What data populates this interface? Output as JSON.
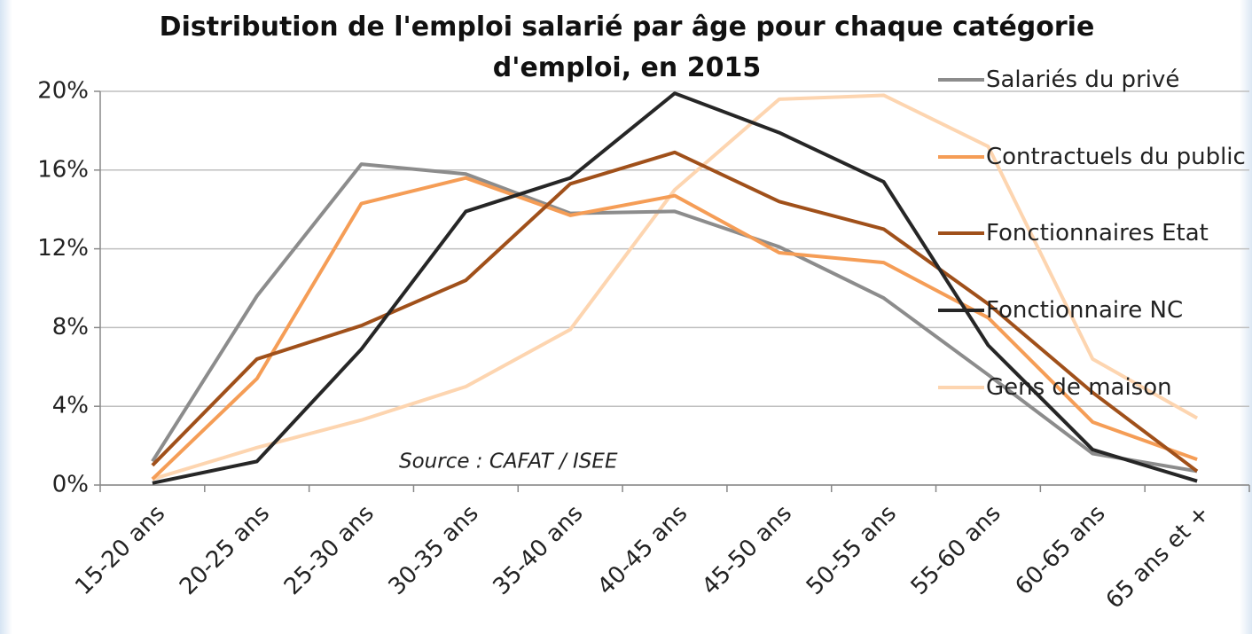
{
  "chart_data": {
    "type": "line",
    "title": "Distribution de l'emploi salarié par âge pour chaque catégorie d'emploi, en 2015",
    "annotation": "Source : CAFAT / ISEE",
    "categories": [
      "15-20 ans",
      "20-25 ans",
      "25-30 ans",
      "30-35 ans",
      "35-40 ans",
      "40-45 ans",
      "45-50 ans",
      "50-55 ans",
      "55-60 ans",
      "60-65 ans",
      "65 ans et +"
    ],
    "series": [
      {
        "name": "Salariés du privé",
        "color": "#8c8c8c",
        "values": [
          1.2,
          9.6,
          16.3,
          15.8,
          13.8,
          13.9,
          12.1,
          9.5,
          5.6,
          1.6,
          0.7
        ]
      },
      {
        "name": "Contractuels du public",
        "color": "#f59d56",
        "values": [
          0.3,
          5.4,
          14.3,
          15.6,
          13.7,
          14.7,
          11.8,
          11.3,
          8.5,
          3.2,
          1.3
        ]
      },
      {
        "name": "Fonctionnaires Etat",
        "color": "#a0501a",
        "values": [
          1.0,
          6.4,
          8.1,
          10.4,
          15.3,
          16.9,
          14.4,
          13.0,
          9.2,
          4.7,
          0.7
        ]
      },
      {
        "name": "Fonctionnaire NC",
        "color": "#262626",
        "values": [
          0.1,
          1.2,
          6.9,
          13.9,
          15.6,
          19.9,
          17.9,
          15.4,
          7.1,
          1.8,
          0.2
        ]
      },
      {
        "name": "Gens de maison",
        "color": "#fdd5b0",
        "values": [
          0.3,
          1.9,
          3.3,
          5.0,
          7.9,
          15.0,
          19.6,
          19.8,
          17.2,
          6.4,
          3.4
        ]
      }
    ],
    "ylim": [
      0,
      20
    ],
    "yticks": [
      {
        "value": 0,
        "label": "0%"
      },
      {
        "value": 4,
        "label": "4%"
      },
      {
        "value": 8,
        "label": "8%"
      },
      {
        "value": 12,
        "label": "12%"
      },
      {
        "value": 16,
        "label": "16%"
      },
      {
        "value": 20,
        "label": "20%"
      }
    ],
    "grid": true,
    "legend": "right"
  }
}
